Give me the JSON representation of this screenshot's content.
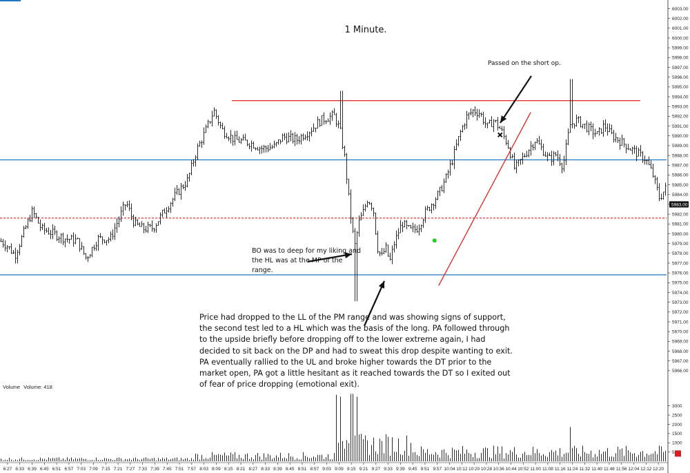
{
  "chart_data": {
    "type": "ohlc-bar",
    "title": "1 Minute.",
    "price_axis": {
      "ticks": [
        "6003.00",
        "6002.00",
        "6001.00",
        "6000.00",
        "5999.00",
        "5998.00",
        "5997.00",
        "5996.00",
        "5995.00",
        "5994.00",
        "5993.00",
        "5992.00",
        "5991.00",
        "5990.00",
        "5989.00",
        "5988.00",
        "5987.00",
        "5986.00",
        "5985.00",
        "5984.00",
        "5983.00",
        "5982.00",
        "5981.00",
        "5980.00",
        "5979.00",
        "5978.00",
        "5977.00",
        "5976.00",
        "5975.00",
        "5974.00",
        "5973.00",
        "5972.00",
        "5971.00",
        "5970.00",
        "5969.00",
        "5968.00",
        "5967.00",
        "5966.00"
      ],
      "range": [
        5965.5,
        6003.6
      ]
    },
    "last_price": "5983.00",
    "time_axis": [
      "6:27",
      "6:33",
      "6:39",
      "6:45",
      "6:51",
      "6:57",
      "7:03",
      "7:09",
      "7:15",
      "7:21",
      "7:27",
      "7:33",
      "7:39",
      "7:45",
      "7:51",
      "7:57",
      "8:03",
      "8:09",
      "8:15",
      "8:21",
      "8:27",
      "8:33",
      "8:39",
      "8:45",
      "8:51",
      "8:57",
      "9:03",
      "9:09",
      "9:15",
      "9:21",
      "9:27",
      "9:33",
      "9:39",
      "9:45",
      "9:51",
      "9:57",
      "10:04",
      "10:12",
      "10:20",
      "10:28",
      "10:36",
      "10:44",
      "10:52",
      "11:00",
      "11:08",
      "11:16",
      "11:24",
      "11:32",
      "11:40",
      "11:48",
      "11:56",
      "12:04",
      "12:12",
      "12:20"
    ],
    "volume_axis": {
      "ticks": [
        "3000",
        "2500",
        "2000",
        "1500",
        "1000",
        "500"
      ],
      "range": [
        0,
        3700
      ]
    },
    "volume_label": "Volume",
    "volume_value": "Volume: 418",
    "price_path_knots": [
      [
        0,
        5979.3
      ],
      [
        10,
        5978.8
      ],
      [
        22,
        5977.8
      ],
      [
        36,
        5980.4
      ],
      [
        47,
        5982.3
      ],
      [
        60,
        5980.5
      ],
      [
        78,
        5980
      ],
      [
        95,
        5979.5
      ],
      [
        112,
        5979.3
      ],
      [
        125,
        5977.5
      ],
      [
        142,
        5979.5
      ],
      [
        160,
        5979.5
      ],
      [
        172,
        5981.5
      ],
      [
        183,
        5983.2
      ],
      [
        195,
        5981
      ],
      [
        208,
        5980.5
      ],
      [
        222,
        5980.6
      ],
      [
        238,
        5982.3
      ],
      [
        255,
        5984
      ],
      [
        272,
        5985.5
      ],
      [
        285,
        5988.5
      ],
      [
        298,
        5990.5
      ],
      [
        310,
        5992.6
      ],
      [
        322,
        5990.6
      ],
      [
        340,
        5989.6
      ],
      [
        362,
        5989.3
      ],
      [
        380,
        5988.7
      ],
      [
        398,
        5988.9
      ],
      [
        410,
        5989.9
      ],
      [
        430,
        5989.6
      ],
      [
        450,
        5990.6
      ],
      [
        465,
        5991.6
      ],
      [
        484,
        5992.1
      ],
      [
        493,
        5990.6
      ],
      [
        500,
        5987.6
      ],
      [
        507,
        5982.6
      ],
      [
        514,
        5978.6
      ],
      [
        520,
        5981.1
      ],
      [
        527,
        5982.3
      ],
      [
        533,
        5983.6
      ],
      [
        541,
        5982.6
      ],
      [
        547,
        5978.6
      ],
      [
        553,
        5977.6
      ],
      [
        559,
        5978.6
      ],
      [
        565,
        5977.1
      ],
      [
        571,
        5978.9
      ],
      [
        577,
        5980.1
      ],
      [
        583,
        5981.1
      ],
      [
        589,
        5980.6
      ],
      [
        596,
        5980.3
      ],
      [
        606,
        5980.6
      ],
      [
        616,
        5982.1
      ],
      [
        626,
        5983.1
      ],
      [
        636,
        5984.1
      ],
      [
        646,
        5985.6
      ],
      [
        656,
        5987.6
      ],
      [
        666,
        5990.1
      ],
      [
        676,
        5991.9
      ],
      [
        686,
        5992.6
      ],
      [
        696,
        5992.3
      ],
      [
        706,
        5990.9
      ],
      [
        716,
        5991.6
      ],
      [
        726,
        5990.6
      ],
      [
        736,
        5989.1
      ],
      [
        746,
        5986.6
      ],
      [
        756,
        5987.6
      ],
      [
        766,
        5988.6
      ],
      [
        776,
        5989.6
      ],
      [
        786,
        5988.6
      ],
      [
        796,
        5987.6
      ],
      [
        806,
        5988.1
      ],
      [
        816,
        5986.9
      ],
      [
        826,
        5991.1
      ],
      [
        836,
        5991.6
      ],
      [
        846,
        5991.1
      ],
      [
        856,
        5990.6
      ],
      [
        866,
        5990.1
      ],
      [
        876,
        5991.1
      ],
      [
        886,
        5990.1
      ],
      [
        896,
        5989.6
      ],
      [
        906,
        5989.1
      ],
      [
        916,
        5988.6
      ],
      [
        926,
        5988.1
      ],
      [
        936,
        5987.6
      ],
      [
        946,
        5986.1
      ],
      [
        956,
        5983.6
      ],
      [
        964,
        5984.6
      ]
    ],
    "levels": [
      {
        "name": "upper-extreme",
        "price": 5993.6,
        "color": "#e02020",
        "style": "solid",
        "from_frac": 0.349
      },
      {
        "name": "upper-level",
        "price": 5987.55,
        "color": "#1f77c4",
        "style": "solid"
      },
      {
        "name": "mid-point",
        "price": 5981.6,
        "color": "#e02020",
        "style": "dashed"
      },
      {
        "name": "lower-level",
        "price": 5975.8,
        "color": "#1f77c4",
        "style": "solid"
      }
    ],
    "trendline": {
      "from": [
        "9:57",
        5974.7
      ],
      "to": [
        "11:00",
        5992.4
      ],
      "color": "#e02020"
    },
    "entry_marker": {
      "label": "entry-dot",
      "time": "9:57",
      "price": 5979.3,
      "color": "#22cc22"
    },
    "exit_marker": {
      "label": "exit-x",
      "time": "10:36",
      "price": 5990.1
    }
  },
  "annotations": {
    "title": "1 Minute.",
    "short_op": "Passed on the short op.",
    "bo_note": "BO was to deep for my liking and the HL was at the MP of the range.",
    "main_note": "Price had dropped to the LL of the PM range and was showing signs of support, the second test led to a HL which was the basis of the long.  PA followed through to the upside briefly before dropping off to the lower extreme again, I had decided to sit back on the  DP and had to sweat this drop despite wanting to exit.  PA eventually rallied to the UL and broke higher towards the DT prior to the market open, PA got a little hesitant as it reached towards the DT so I exited out of fear of price dropping (emotional exit)."
  }
}
